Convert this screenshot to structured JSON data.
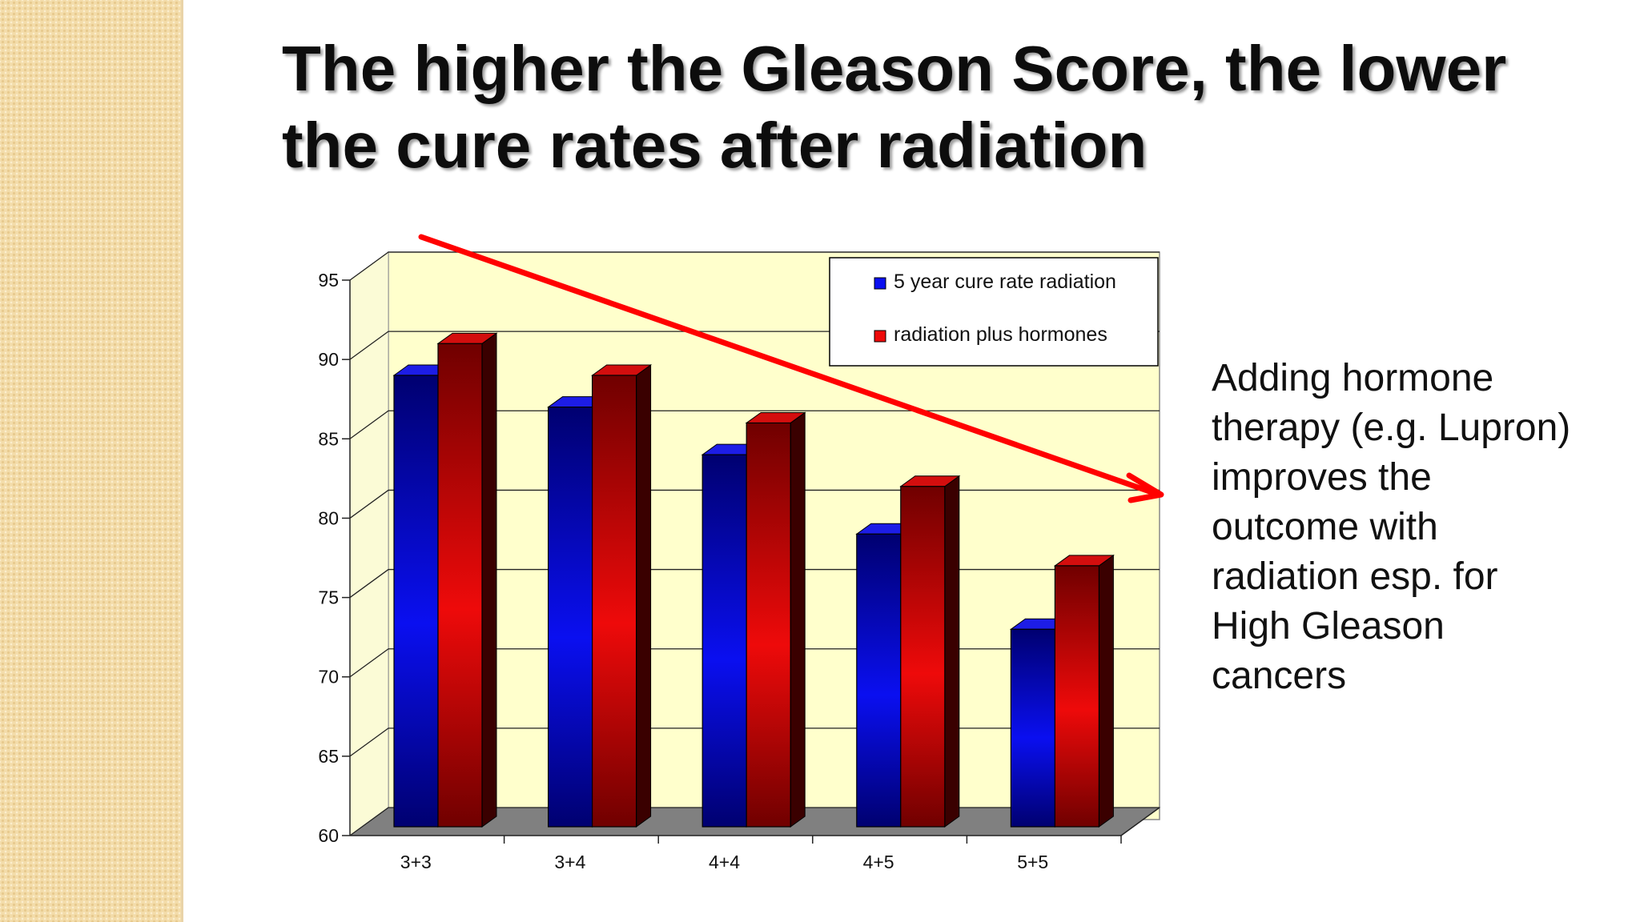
{
  "slide": {
    "title": "The higher the Gleason Score, the lower the cure rates after radiation",
    "note": "Adding hormone\ntherapy (e.g. Lupron)\nimproves the\noutcome with\nradiation esp. for\nHigh Gleason\ncancers"
  },
  "chart_data": {
    "type": "bar",
    "categories": [
      "3+3",
      "3+4",
      "4+4",
      "4+5",
      "5+5"
    ],
    "series": [
      {
        "name": "5 year cure rate radiation",
        "values": [
          89,
          87,
          84,
          79,
          73
        ],
        "color": "#0a0ff0"
      },
      {
        "name": "radiation plus hormones",
        "values": [
          91,
          89,
          86,
          82,
          77
        ],
        "color": "#ee0a0a"
      }
    ],
    "ylim": [
      60,
      95
    ],
    "yticks": [
      60,
      65,
      70,
      75,
      80,
      85,
      90,
      95
    ],
    "grid": true,
    "legend": "top-right",
    "style": "3d",
    "trend_arrow": {
      "color": "#ff0000",
      "direction": "downward"
    },
    "colors": {
      "wall": "#ffffcc",
      "floor": "#808080"
    }
  }
}
